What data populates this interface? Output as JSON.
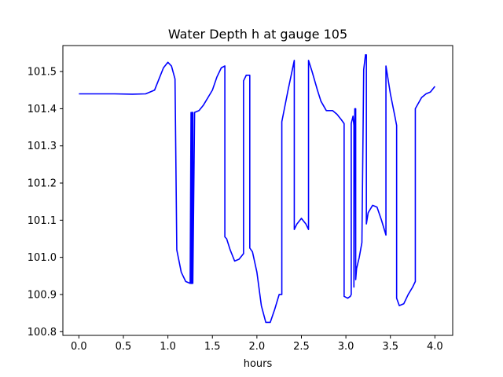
{
  "chart_data": {
    "type": "line",
    "title": "Water Depth h at gauge 105",
    "xlabel": "hours",
    "ylabel": "",
    "xlim": [
      -0.18,
      4.2
    ],
    "ylim": [
      100.79,
      101.57
    ],
    "xticks": [
      0.0,
      0.5,
      1.0,
      1.5,
      2.0,
      2.5,
      3.0,
      3.5,
      4.0
    ],
    "xtick_labels": [
      "0.0",
      "0.5",
      "1.0",
      "1.5",
      "2.0",
      "2.5",
      "3.0",
      "3.5",
      "4.0"
    ],
    "yticks": [
      100.8,
      100.9,
      101.0,
      101.1,
      101.2,
      101.3,
      101.4,
      101.5
    ],
    "ytick_labels": [
      "100.8",
      "100.9",
      "101.0",
      "101.1",
      "101.2",
      "101.3",
      "101.4",
      "101.5"
    ],
    "grid": false,
    "series": [
      {
        "color": "#0000ff",
        "x": [
          0.0,
          0.2,
          0.4,
          0.6,
          0.75,
          0.85,
          0.9,
          0.95,
          1.0,
          1.04,
          1.08,
          1.1,
          1.1,
          1.15,
          1.2,
          1.25,
          1.26,
          1.26,
          1.27,
          1.27,
          1.28,
          1.28,
          1.3,
          1.35,
          1.4,
          1.45,
          1.5,
          1.55,
          1.6,
          1.64,
          1.64,
          1.66,
          1.7,
          1.75,
          1.8,
          1.85,
          1.85,
          1.88,
          1.92,
          1.92,
          1.95,
          2.0,
          2.05,
          2.1,
          2.15,
          2.2,
          2.25,
          2.28,
          2.28,
          2.35,
          2.42,
          2.42,
          2.45,
          2.5,
          2.55,
          2.58,
          2.58,
          2.62,
          2.68,
          2.72,
          2.78,
          2.85,
          2.9,
          2.95,
          2.98,
          2.98,
          3.02,
          3.05,
          3.06,
          3.06,
          3.08,
          3.09,
          3.09,
          3.1,
          3.11,
          3.11,
          3.12,
          3.15,
          3.18,
          3.2,
          3.2,
          3.22,
          3.23,
          3.23,
          3.25,
          3.3,
          3.35,
          3.4,
          3.45,
          3.45,
          3.5,
          3.55,
          3.57,
          3.57,
          3.6,
          3.65,
          3.7,
          3.75,
          3.78,
          3.78,
          3.85,
          3.9,
          3.95,
          4.0
        ],
        "y": [
          101.44,
          101.44,
          101.44,
          101.439,
          101.44,
          101.45,
          101.48,
          101.51,
          101.525,
          101.515,
          101.48,
          101.02,
          101.02,
          100.96,
          100.935,
          100.93,
          101.39,
          100.93,
          100.93,
          101.39,
          101.39,
          100.93,
          101.39,
          101.395,
          101.41,
          101.43,
          101.45,
          101.485,
          101.51,
          101.515,
          101.055,
          101.05,
          101.02,
          100.99,
          100.995,
          101.01,
          101.475,
          101.49,
          101.49,
          101.025,
          101.015,
          100.96,
          100.87,
          100.825,
          100.825,
          100.86,
          100.9,
          100.9,
          101.365,
          101.45,
          101.53,
          101.075,
          101.09,
          101.105,
          101.09,
          101.075,
          101.53,
          101.5,
          101.45,
          101.42,
          101.395,
          101.395,
          101.385,
          101.37,
          101.36,
          100.895,
          100.89,
          100.895,
          100.9,
          101.36,
          101.38,
          101.355,
          100.92,
          101.4,
          101.4,
          100.94,
          100.97,
          101.0,
          101.04,
          101.505,
          101.505,
          101.545,
          101.545,
          101.09,
          101.12,
          101.14,
          101.135,
          101.1,
          101.06,
          101.515,
          101.44,
          101.38,
          101.355,
          100.89,
          100.87,
          100.875,
          100.9,
          100.92,
          100.935,
          101.4,
          101.43,
          101.44,
          101.445,
          101.46
        ]
      }
    ]
  }
}
